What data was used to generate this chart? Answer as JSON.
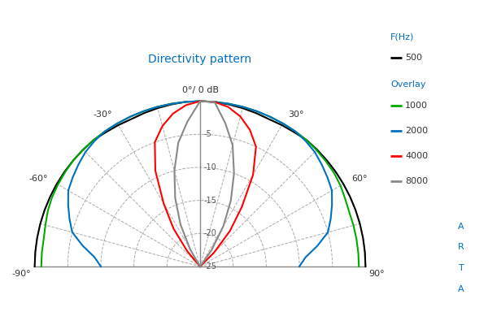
{
  "title": "Directivity pattern",
  "title_color": "#0070C0",
  "background_color": "#ffffff",
  "grid_color": "#aaaaaa",
  "grid_color_dark": "#888888",
  "dB_levels": [
    0,
    -5,
    -10,
    -15,
    -20,
    -25
  ],
  "min_dB": -25,
  "max_dB": 0,
  "legend_title_color": "#0070C0",
  "arta_color": "#0070C0",
  "curves": {
    "500": {
      "color": "#000000",
      "lw": 1.5,
      "angles_deg": [
        -90,
        -85,
        -80,
        -75,
        -70,
        -65,
        -60,
        -55,
        -50,
        -45,
        -40,
        -35,
        -30,
        -25,
        -20,
        -15,
        -10,
        -5,
        0,
        5,
        10,
        15,
        20,
        25,
        30,
        35,
        40,
        45,
        50,
        55,
        60,
        65,
        70,
        75,
        80,
        85,
        90
      ],
      "dB": [
        0,
        0,
        0,
        0,
        0,
        0,
        0,
        0,
        0,
        0,
        0,
        -0.2,
        -0.3,
        -0.4,
        -0.3,
        -0.2,
        -0.1,
        0,
        0,
        0,
        -0.1,
        -0.2,
        -0.3,
        -0.4,
        -0.3,
        -0.2,
        0,
        0,
        0,
        0,
        0,
        0,
        0,
        0,
        0,
        0,
        0
      ]
    },
    "1000": {
      "color": "#00aa00",
      "lw": 1.5,
      "angles_deg": [
        -90,
        -85,
        -80,
        -75,
        -70,
        -65,
        -60,
        -55,
        -50,
        -45,
        -40,
        -35,
        -30,
        -25,
        -20,
        -15,
        -10,
        -5,
        0,
        5,
        10,
        15,
        20,
        25,
        30,
        35,
        40,
        45,
        50,
        55,
        60,
        65,
        70,
        75,
        80,
        85,
        90
      ],
      "dB": [
        -1,
        -1,
        -1,
        -0.8,
        -0.5,
        -0.3,
        -0.2,
        -0.1,
        0,
        0,
        0,
        0,
        0,
        0,
        0,
        0,
        0,
        0,
        0,
        0,
        0,
        0,
        0,
        0,
        0,
        0,
        0,
        -0.1,
        -0.2,
        -0.3,
        -0.5,
        -0.8,
        -1,
        -1,
        -1,
        -1,
        -1
      ]
    },
    "2000": {
      "color": "#0070C0",
      "lw": 1.5,
      "angles_deg": [
        -90,
        -85,
        -80,
        -75,
        -70,
        -65,
        -60,
        -55,
        -50,
        -45,
        -40,
        -35,
        -30,
        -25,
        -20,
        -15,
        -10,
        -5,
        0,
        5,
        10,
        15,
        20,
        25,
        30,
        35,
        40,
        45,
        50,
        55,
        60,
        65,
        70,
        75,
        80,
        85,
        90
      ],
      "dB": [
        -10,
        -9,
        -7,
        -5,
        -4,
        -3,
        -2,
        -1.5,
        -1,
        -0.5,
        -0.2,
        0,
        0,
        0,
        0,
        0,
        0,
        0,
        0,
        0,
        0,
        0,
        0,
        0,
        0,
        0,
        -0.2,
        -0.5,
        -1,
        -1.5,
        -2,
        -3,
        -4,
        -5,
        -7,
        -9,
        -10
      ]
    },
    "4000": {
      "color": "#ff0000",
      "lw": 1.5,
      "angles_deg": [
        -90,
        -85,
        -80,
        -75,
        -70,
        -65,
        -60,
        -55,
        -50,
        -45,
        -40,
        -35,
        -30,
        -25,
        -20,
        -15,
        -10,
        -5,
        0,
        5,
        10,
        15,
        20,
        25,
        30,
        35,
        40,
        45,
        50,
        55,
        60,
        65,
        70,
        75,
        80,
        85,
        90
      ],
      "dB": [
        -25,
        -25,
        -25,
        -25,
        -25,
        -25,
        -25,
        -25,
        -25,
        -25,
        -22,
        -18,
        -14,
        -9,
        -5,
        -3,
        -1.5,
        -0.5,
        0,
        0,
        -0.5,
        -1.5,
        -3,
        -5,
        -9,
        -14,
        -18,
        -22,
        -25,
        -25,
        -25,
        -25,
        -25,
        -25,
        -25,
        -25,
        -25
      ]
    },
    "8000": {
      "color": "#888888",
      "lw": 1.5,
      "angles_deg": [
        -90,
        -85,
        -80,
        -75,
        -70,
        -65,
        -60,
        -55,
        -50,
        -45,
        -40,
        -35,
        -30,
        -25,
        -20,
        -15,
        -10,
        -5,
        0,
        5,
        10,
        15,
        20,
        25,
        30,
        35,
        40,
        45,
        50,
        55,
        60,
        65,
        70,
        75,
        80,
        85,
        90
      ],
      "dB": [
        -25,
        -25,
        -25,
        -25,
        -25,
        -25,
        -25,
        -25,
        -25,
        -25,
        -25,
        -25,
        -22,
        -18,
        -14,
        -10,
        -6,
        -3,
        0,
        0,
        -3,
        -6,
        -10,
        -14,
        -18,
        -22,
        -25,
        -25,
        -25,
        -25,
        -25,
        -25,
        -25,
        -25,
        -25,
        -25,
        -25
      ]
    }
  }
}
